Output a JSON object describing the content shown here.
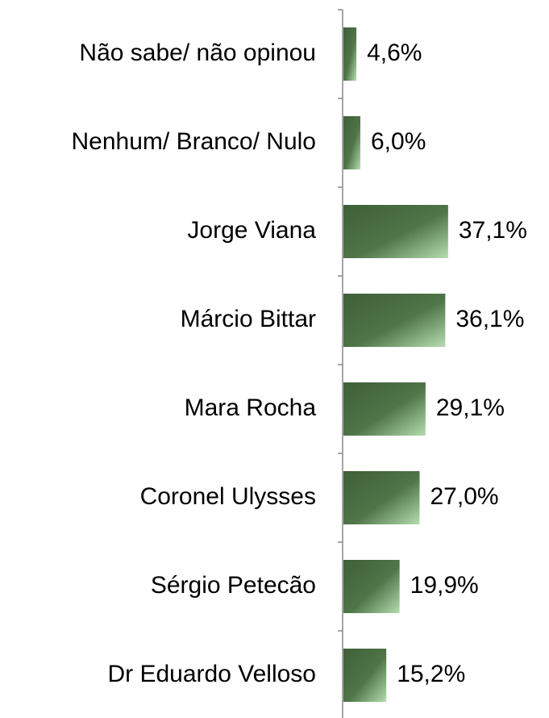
{
  "chart_data": {
    "type": "barh",
    "categories": [
      "Não sabe/ não opinou",
      "Nenhum/ Branco/ Nulo",
      "Jorge Viana",
      "Márcio Bittar",
      "Mara Rocha",
      "Coronel Ulysses",
      "Sérgio Petecão",
      "Dr Eduardo Velloso"
    ],
    "values": [
      4.6,
      6.0,
      37.1,
      36.1,
      29.1,
      27.0,
      19.9,
      15.2
    ],
    "value_labels": [
      "4,6%",
      "6,0%",
      "37,1%",
      "36,1%",
      "29,1%",
      "27,0%",
      "19,9%",
      "15,2%"
    ],
    "color": "#4a6b42"
  }
}
